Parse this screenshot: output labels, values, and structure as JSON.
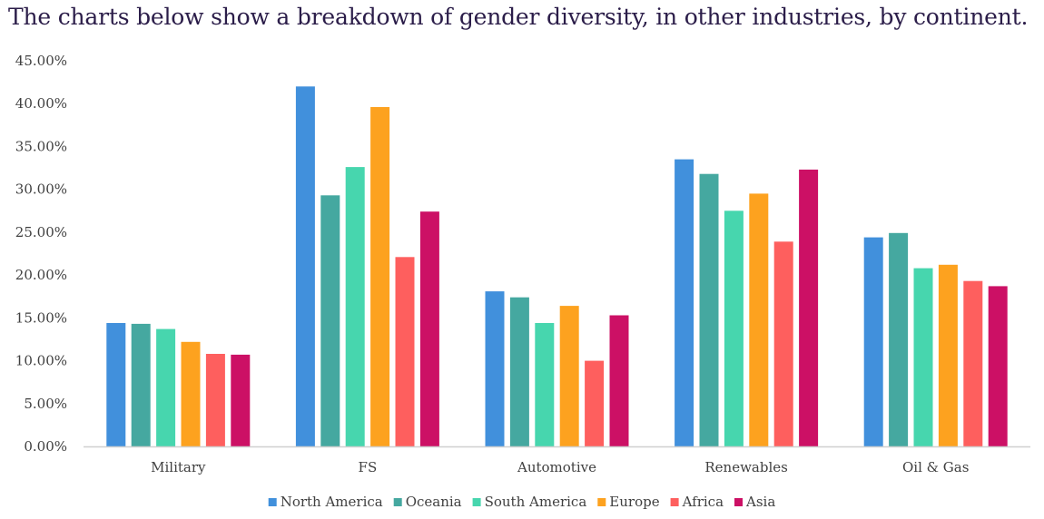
{
  "title": "The charts below show a breakdown of gender diversity, in other industries, by continent.",
  "chart_data": {
    "type": "bar",
    "title": "The charts below show a breakdown of gender diversity, in other industries, by continent.",
    "xlabel": "",
    "ylabel": "",
    "ylim": [
      0,
      45
    ],
    "yticks": [
      "0.00%",
      "5.00%",
      "10.00%",
      "15.00%",
      "20.00%",
      "25.00%",
      "30.00%",
      "35.00%",
      "40.00%",
      "45.00%"
    ],
    "grid": false,
    "legend_position": "bottom",
    "categories": [
      "Military",
      "FS",
      "Automotive",
      "Renewables",
      "Oil & Gas"
    ],
    "series": [
      {
        "name": "North America",
        "color": "#4190DC",
        "values": [
          14.4,
          42.0,
          18.1,
          33.5,
          24.4
        ]
      },
      {
        "name": "Oceania",
        "color": "#45A8A0",
        "values": [
          14.3,
          29.3,
          17.4,
          31.8,
          24.9
        ]
      },
      {
        "name": "South America",
        "color": "#47D6AE",
        "values": [
          13.7,
          32.6,
          14.4,
          27.5,
          20.8
        ]
      },
      {
        "name": "Europe",
        "color": "#FDA21F",
        "values": [
          12.2,
          39.6,
          16.4,
          29.5,
          21.2
        ]
      },
      {
        "name": "Africa",
        "color": "#FE5F5E",
        "values": [
          10.8,
          22.1,
          10.0,
          23.9,
          19.3
        ]
      },
      {
        "name": "Asia",
        "color": "#CC1065",
        "values": [
          10.7,
          27.4,
          15.3,
          32.3,
          18.7
        ]
      }
    ]
  }
}
